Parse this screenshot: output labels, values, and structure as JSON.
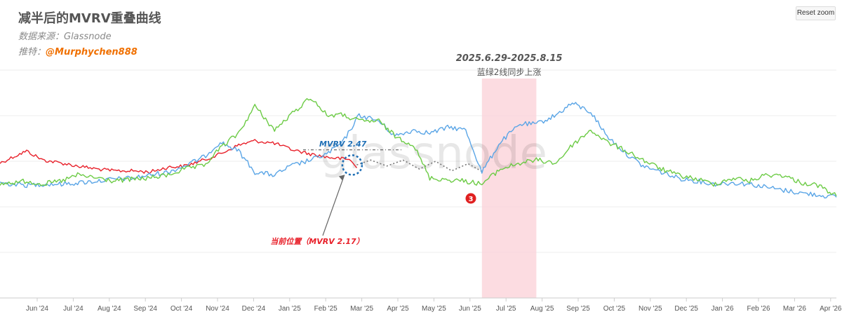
{
  "header": {
    "title": "减半后的MVRV重叠曲线",
    "source": "数据来源：Glassnode",
    "author_prefix": "推特：",
    "author_handle": "@Murphychen888"
  },
  "toolbar": {
    "reset_zoom_label": "Reset zoom"
  },
  "watermark": "glassnode",
  "colors": {
    "red": "#e8202a",
    "blue": "#5aa5e6",
    "green": "#6ccb45",
    "highlight": "#fbd3da",
    "grid": "#eeeeee",
    "annotation_dark": "#555555",
    "annotation_blue": "#1f6fb5",
    "marker": "#e02020"
  },
  "annotations": {
    "period": "2025.6.29-2025.8.15",
    "period_note": "蓝绿2线同步上涨",
    "mvrv_ref": "MVRV 2.47",
    "current": "当前位置（MVRV 2.17）",
    "marker_number": "3"
  },
  "chart_data": {
    "type": "line",
    "x_tick_labels": [
      "Jun '24",
      "Jul '24",
      "Aug '24",
      "Sep '24",
      "Oct '24",
      "Nov '24",
      "Dec '24",
      "Jan '25",
      "Feb '25",
      "Mar '25",
      "Apr '25",
      "May '25",
      "Jun '25",
      "Jul '25",
      "Aug '25",
      "Sep '25",
      "Oct '25",
      "Nov '25",
      "Dec '25",
      "Jan '26",
      "Feb '26",
      "Mar '26",
      "Apr '26"
    ],
    "x_range": [
      "2024-05-09",
      "2026-05-01"
    ],
    "y_range": [
      0,
      3.8
    ],
    "grid": true,
    "y_axis_labels_shown": false,
    "highlight_range": [
      "2025-06-29",
      "2025-08-15"
    ],
    "reference_level": 2.47,
    "current_value": 2.17,
    "series": [
      {
        "color": "red",
        "dates": [
          "2024-05-09",
          "2024-05-20",
          "2024-06-01",
          "2024-06-15",
          "2024-07-01",
          "2024-07-15",
          "2024-08-01",
          "2024-08-15",
          "2024-09-01",
          "2024-09-15",
          "2024-10-01",
          "2024-10-15",
          "2024-11-01",
          "2024-11-15",
          "2024-12-01",
          "2024-12-15",
          "2025-01-01",
          "2025-01-15",
          "2025-02-01",
          "2025-02-15",
          "2025-02-28",
          "2025-03-08",
          "2025-03-13"
        ],
        "values": [
          2.25,
          2.35,
          2.45,
          2.3,
          2.25,
          2.2,
          2.15,
          2.12,
          2.12,
          2.1,
          2.18,
          2.2,
          2.3,
          2.4,
          2.55,
          2.62,
          2.58,
          2.48,
          2.4,
          2.35,
          2.32,
          2.3,
          2.17
        ]
      },
      {
        "color": "red",
        "style": "dotted-projection",
        "dates": [
          "2025-03-13",
          "2025-03-25",
          "2025-04-08",
          "2025-04-22",
          "2025-05-06",
          "2025-05-20",
          "2025-06-03",
          "2025-06-17",
          "2025-06-30"
        ],
        "values": [
          2.22,
          2.3,
          2.2,
          2.3,
          2.15,
          2.28,
          2.12,
          2.24,
          2.1
        ]
      },
      {
        "color": "blue",
        "dates": [
          "2024-05-09",
          "2024-06-01",
          "2024-06-15",
          "2024-07-01",
          "2024-07-15",
          "2024-08-01",
          "2024-08-15",
          "2024-09-01",
          "2024-09-15",
          "2024-10-01",
          "2024-10-15",
          "2024-11-01",
          "2024-11-15",
          "2024-12-01",
          "2024-12-15",
          "2025-01-01",
          "2025-01-15",
          "2025-02-01",
          "2025-02-15",
          "2025-03-01",
          "2025-03-15",
          "2025-04-01",
          "2025-04-15",
          "2025-05-01",
          "2025-05-15",
          "2025-06-01",
          "2025-06-15",
          "2025-06-29",
          "2025-07-15",
          "2025-08-01",
          "2025-08-15",
          "2025-09-01",
          "2025-09-15",
          "2025-10-01",
          "2025-10-15",
          "2025-11-01",
          "2025-11-15",
          "2025-12-01",
          "2025-12-15",
          "2026-01-01",
          "2026-01-15",
          "2026-02-01",
          "2026-02-15",
          "2026-03-01",
          "2026-03-15",
          "2026-04-01",
          "2026-04-15",
          "2026-05-01"
        ],
        "values": [
          1.92,
          1.88,
          1.9,
          1.9,
          1.92,
          1.95,
          1.98,
          2.0,
          2.05,
          2.1,
          2.2,
          2.35,
          2.6,
          2.45,
          2.1,
          2.05,
          2.2,
          2.3,
          2.4,
          2.6,
          3.05,
          2.95,
          2.7,
          2.8,
          2.75,
          2.85,
          2.8,
          2.1,
          2.6,
          2.9,
          2.9,
          3.05,
          3.25,
          3.1,
          2.7,
          2.4,
          2.2,
          2.1,
          2.0,
          1.95,
          1.9,
          1.92,
          1.9,
          1.85,
          1.8,
          1.75,
          1.72,
          1.68
        ]
      },
      {
        "color": "green",
        "dates": [
          "2024-05-09",
          "2024-06-01",
          "2024-06-15",
          "2024-07-01",
          "2024-07-15",
          "2024-08-01",
          "2024-08-15",
          "2024-09-01",
          "2024-09-15",
          "2024-10-01",
          "2024-10-15",
          "2024-11-01",
          "2024-11-15",
          "2024-12-01",
          "2024-12-15",
          "2025-01-01",
          "2025-01-15",
          "2025-02-01",
          "2025-02-15",
          "2025-03-01",
          "2025-03-15",
          "2025-04-01",
          "2025-04-15",
          "2025-05-01",
          "2025-05-15",
          "2025-06-01",
          "2025-06-15",
          "2025-06-29",
          "2025-07-15",
          "2025-08-01",
          "2025-08-15",
          "2025-09-01",
          "2025-09-15",
          "2025-10-01",
          "2025-10-15",
          "2025-11-01",
          "2025-11-15",
          "2025-12-01",
          "2025-12-15",
          "2026-01-01",
          "2026-01-15",
          "2026-02-01",
          "2026-02-15",
          "2026-03-01",
          "2026-03-15",
          "2026-04-01",
          "2026-04-15",
          "2026-05-01"
        ],
        "values": [
          1.9,
          1.95,
          1.9,
          1.95,
          2.05,
          2.0,
          1.95,
          1.98,
          2.0,
          2.05,
          2.15,
          2.2,
          2.5,
          2.75,
          3.2,
          2.8,
          3.05,
          3.35,
          3.05,
          3.05,
          2.95,
          2.95,
          2.7,
          2.55,
          2.0,
          1.97,
          1.95,
          1.9,
          2.15,
          2.25,
          2.3,
          2.25,
          2.55,
          2.8,
          2.6,
          2.45,
          2.3,
          2.15,
          2.05,
          1.98,
          1.9,
          2.0,
          1.95,
          2.05,
          2.05,
          1.92,
          1.88,
          1.7
        ]
      }
    ]
  }
}
